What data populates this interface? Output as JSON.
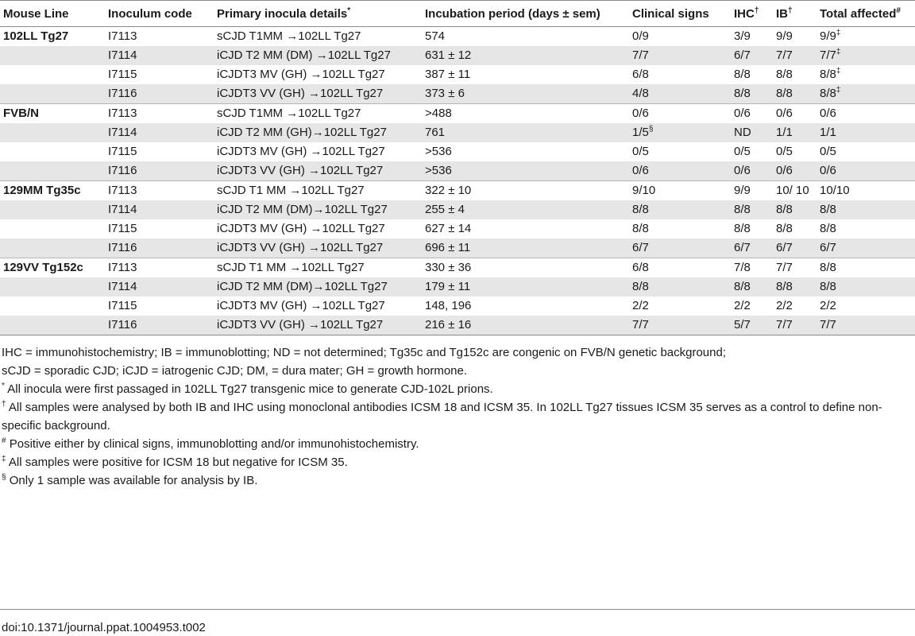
{
  "table": {
    "headers": [
      {
        "text": "Mouse Line",
        "sup": ""
      },
      {
        "text": "Inoculum code",
        "sup": ""
      },
      {
        "text": "Primary inocula details",
        "sup": "*"
      },
      {
        "text": "Incubation period (days ± sem)",
        "sup": ""
      },
      {
        "text": "Clinical signs",
        "sup": ""
      },
      {
        "text": "IHC",
        "sup": "†"
      },
      {
        "text": "IB",
        "sup": "†"
      },
      {
        "text": "Total affected",
        "sup": "#"
      }
    ],
    "rows": [
      {
        "line": "102LL Tg27",
        "code": "I7113",
        "details": "sCJD T1MM →102LL Tg27",
        "incubation": "574",
        "clinical": "0/9",
        "clinical_sup": "",
        "ihc": "3/9",
        "ib": "9/9",
        "total": "9/9",
        "total_sup": "‡"
      },
      {
        "line": "",
        "code": "I7114",
        "details": "iCJD T2 MM (DM) →102LL Tg27",
        "incubation": "631 ± 12",
        "clinical": "7/7",
        "clinical_sup": "",
        "ihc": "6/7",
        "ib": "7/7",
        "total": "7/7",
        "total_sup": "‡"
      },
      {
        "line": "",
        "code": "I7115",
        "details": "iCJDT3 MV (GH) →102LL Tg27",
        "incubation": "387 ± 11",
        "clinical": "6/8",
        "clinical_sup": "",
        "ihc": "8/8",
        "ib": "8/8",
        "total": "8/8",
        "total_sup": "‡"
      },
      {
        "line": "",
        "code": "I7116",
        "details": "iCJDT3 VV (GH) →102LL Tg27",
        "incubation": "373 ± 6",
        "clinical": "4/8",
        "clinical_sup": "",
        "ihc": "8/8",
        "ib": "8/8",
        "total": "8/8",
        "total_sup": "‡"
      },
      {
        "line": "FVB/N",
        "code": "I7113",
        "details": "sCJD T1MM →102LL Tg27",
        "incubation": ">488",
        "clinical": "0/6",
        "clinical_sup": "",
        "ihc": "0/6",
        "ib": "0/6",
        "total": "0/6",
        "total_sup": ""
      },
      {
        "line": "",
        "code": "I7114",
        "details": "iCJD T2 MM (GH)→102LL Tg27",
        "incubation": "761",
        "clinical": "1/5",
        "clinical_sup": "§",
        "ihc": "ND",
        "ib": "1/1",
        "total": "1/1",
        "total_sup": ""
      },
      {
        "line": "",
        "code": "I7115",
        "details": "iCJDT3 MV (GH) →102LL Tg27",
        "incubation": ">536",
        "clinical": "0/5",
        "clinical_sup": "",
        "ihc": "0/5",
        "ib": "0/5",
        "total": "0/5",
        "total_sup": ""
      },
      {
        "line": "",
        "code": "I7116",
        "details": "iCJDT3 VV (GH) →102LL Tg27",
        "incubation": ">536",
        "clinical": "0/6",
        "clinical_sup": "",
        "ihc": "0/6",
        "ib": "0/6",
        "total": "0/6",
        "total_sup": ""
      },
      {
        "line": "129MM Tg35c",
        "code": "I7113",
        "details": "sCJD T1 MM →102LL Tg27",
        "incubation": "322 ± 10",
        "clinical": "9/10",
        "clinical_sup": "",
        "ihc": "9/9",
        "ib": "10/ 10",
        "total": "10/10",
        "total_sup": ""
      },
      {
        "line": "",
        "code": "I7114",
        "details": "iCJD T2 MM (DM)→102LL Tg27",
        "incubation": "255 ± 4",
        "clinical": "8/8",
        "clinical_sup": "",
        "ihc": "8/8",
        "ib": "8/8",
        "total": "8/8",
        "total_sup": ""
      },
      {
        "line": "",
        "code": "I7115",
        "details": "iCJDT3 MV (GH) →102LL Tg27",
        "incubation": "627 ± 14",
        "clinical": "8/8",
        "clinical_sup": "",
        "ihc": "8/8",
        "ib": "8/8",
        "total": "8/8",
        "total_sup": ""
      },
      {
        "line": "",
        "code": "I7116",
        "details": "iCJDT3 VV (GH) →102LL Tg27",
        "incubation": "696 ± 11",
        "clinical": "6/7",
        "clinical_sup": "",
        "ihc": "6/7",
        "ib": "6/7",
        "total": "6/7",
        "total_sup": ""
      },
      {
        "line": "129VV Tg152c",
        "code": "I7113",
        "details": "sCJD T1 MM →102LL Tg27",
        "incubation": "330 ± 36",
        "clinical": "6/8",
        "clinical_sup": "",
        "ihc": "7/8",
        "ib": "7/7",
        "total": "8/8",
        "total_sup": ""
      },
      {
        "line": "",
        "code": "I7114",
        "details": "iCJD T2 MM (DM)→102LL Tg27",
        "incubation": "179 ± 11",
        "clinical": "8/8",
        "clinical_sup": "",
        "ihc": "8/8",
        "ib": "8/8",
        "total": "8/8",
        "total_sup": ""
      },
      {
        "line": "",
        "code": "I7115",
        "details": "iCJDT3 MV (GH) →102LL Tg27",
        "incubation": "148, 196",
        "clinical": "2/2",
        "clinical_sup": "",
        "ihc": "2/2",
        "ib": "2/2",
        "total": "2/2",
        "total_sup": ""
      },
      {
        "line": "",
        "code": "I7116",
        "details": "iCJDT3 VV (GH) →102LL Tg27",
        "incubation": "216 ± 16",
        "clinical": "7/7",
        "clinical_sup": "",
        "ihc": "5/7",
        "ib": "7/7",
        "total": "7/7",
        "total_sup": ""
      }
    ]
  },
  "notes": {
    "abbrev_1": "IHC = immunohistochemistry; IB = immunoblotting; ND = not determined; Tg35c and Tg152c are congenic on FVB/N genetic background;",
    "abbrev_2": "sCJD = sporadic CJD; iCJD = iatrogenic CJD; DM, = dura mater; GH = growth hormone.",
    "footnotes": [
      {
        "mark": "*",
        "text": " All inocula were first passaged in 102LL Tg27 transgenic mice to generate CJD-102L prions."
      },
      {
        "mark": "†",
        "text": " All samples were analysed by both IB and IHC using monoclonal antibodies ICSM 18 and ICSM 35. In 102LL Tg27 tissues ICSM 35 serves as a control to define non-specific background."
      },
      {
        "mark": "#",
        "text": " Positive either by clinical signs, immunoblotting and/or immunohistochemistry."
      },
      {
        "mark": "‡",
        "text": " All samples were positive for ICSM 18 but negative for ICSM 35."
      },
      {
        "mark": "§",
        "text": " Only 1 sample was available for analysis by IB."
      }
    ]
  },
  "doi": "doi:10.1371/journal.ppat.1004953.t002"
}
